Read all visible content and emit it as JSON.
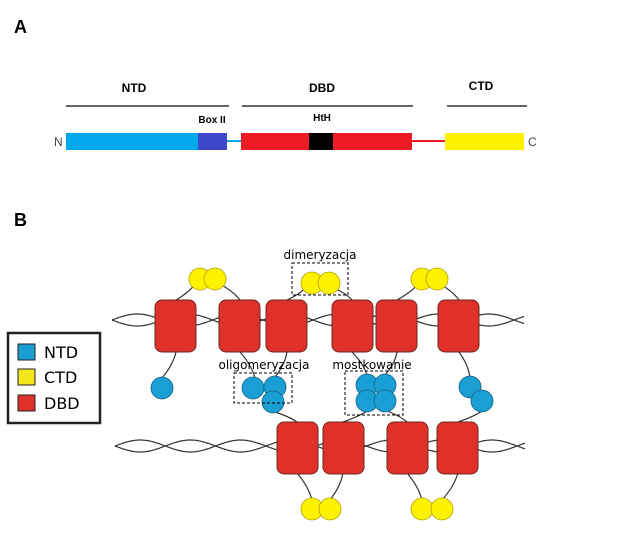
{
  "panel_a": {
    "letter": "A",
    "domains": {
      "ntd": "NTD",
      "dbd": "DBD",
      "ctd": "CTD"
    },
    "motifs": {
      "box2": "Box II",
      "hth": "HtH"
    },
    "termini": {
      "n": "N",
      "c": "C"
    }
  },
  "panel_b": {
    "letter": "B",
    "annotations": {
      "dimer": "dimeryzacja",
      "oligo": "oligomeryzacja",
      "bridge": "mostkowanie"
    }
  },
  "legend": {
    "items": [
      {
        "label": "NTD",
        "color": "#1a9fd4"
      },
      {
        "label": "CTD",
        "color": "#f5e61a"
      },
      {
        "label": "DBD",
        "color": "#e0302a"
      }
    ]
  },
  "colors": {
    "ntd_bar": "#00a8ec",
    "box2": "#3f48cc",
    "dbd_bar": "#ed1c24",
    "hth": "#000000",
    "ctd_bar": "#fff200"
  }
}
